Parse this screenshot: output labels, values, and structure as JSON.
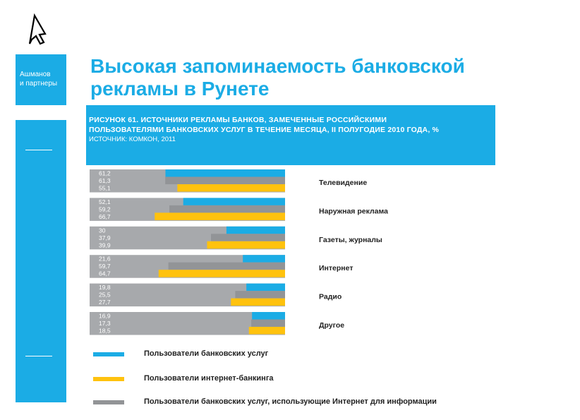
{
  "brand": {
    "line1": "Ашманов",
    "line2": "и партнеры"
  },
  "title": {
    "line1": "Высокая запоминаемость банковской",
    "line2": "рекламы в Рунете"
  },
  "chart_data": {
    "type": "bar",
    "orientation": "horizontal",
    "heading_line1": "РИСУНОК 61. ИСТОЧНИКИ РЕКЛАМЫ БАНКОВ, ЗАМЕЧЕННЫЕ РОССИЙСКИМИ",
    "heading_line2": "ПОЛЬЗОВАТЕЛЯМИ БАНКОВСКИХ УСЛУГ В ТЕЧЕНИЕ МЕСЯЦА, II ПОЛУГОДИЕ 2010 ГОДА, %",
    "source": "ИСТОЧНИК: КОМКОН, 2011",
    "categories": [
      "Телевидение",
      "Наружная реклама",
      "Газеты, журналы",
      "Интернет",
      "Радио",
      "Другое"
    ],
    "series": [
      {
        "name": "Пользователи банковских услуг",
        "color": "#1bace5",
        "values": [
          61.2,
          52.1,
          30,
          21.6,
          19.8,
          16.9
        ]
      },
      {
        "name": "Пользователи банковских услуг, использующие Интернет для информации",
        "color": "#929497",
        "values": [
          61.3,
          59.2,
          37.9,
          59.7,
          25.5,
          17.3
        ]
      },
      {
        "name": "Пользователи интернет-банкинга",
        "color": "#ffc20e",
        "values": [
          55.1,
          66.7,
          39.9,
          64.7,
          27.7,
          18.5
        ]
      }
    ],
    "value_labels": [
      [
        "61,2",
        "61,3",
        "55,1"
      ],
      [
        "52,1",
        "59,2",
        "66,7"
      ],
      [
        "30",
        "37,9",
        "39,9"
      ],
      [
        "21,6",
        "59,7",
        "64,7"
      ],
      [
        "19,8",
        "25,5",
        "27,7"
      ],
      [
        "16,9",
        "17,3",
        "18,5"
      ]
    ],
    "xlim": [
      0,
      100
    ],
    "legend_position": "bottom",
    "legend": [
      {
        "label": "Пользователи банковских услуг",
        "color": "#1bace5"
      },
      {
        "label": "Пользователи интернет-банкинга",
        "color": "#ffc20e"
      },
      {
        "label": "Пользователи банковских услуг, использующие Интернет для информации",
        "color": "#929497"
      }
    ]
  }
}
